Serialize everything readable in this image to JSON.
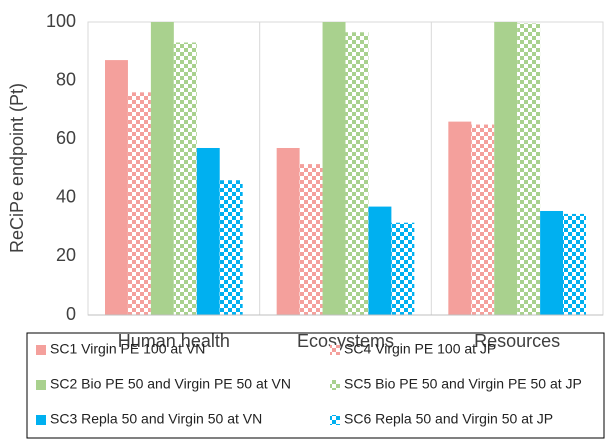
{
  "chart_data": {
    "type": "bar",
    "y_label": "ReCiPe endpoint (Pt)",
    "categories": [
      "Human health",
      "Ecosystems",
      "Resources"
    ],
    "series": [
      {
        "name": "SC1 Virgin PE 100 at VN",
        "color": "#f4a09c",
        "pattern": "solid",
        "values": [
          87,
          57,
          66
        ]
      },
      {
        "name": "SC4 Virgin PE 100 at JP",
        "color": "#f4a09c",
        "pattern": "checker",
        "values": [
          76,
          51.5,
          65
        ]
      },
      {
        "name": "SC2 Bio PE 50 and Virgin PE 50 at VN",
        "color": "#a9d18e",
        "pattern": "solid",
        "values": [
          100,
          100,
          100
        ]
      },
      {
        "name": "SC5 Bio PE 50 and Virgin PE 50 at JP",
        "color": "#a9d18e",
        "pattern": "checker",
        "values": [
          93,
          96.5,
          99.5
        ]
      },
      {
        "name": "SC3 Repla 50 and Virgin 50 at VN",
        "color": "#00b0f0",
        "pattern": "solid",
        "values": [
          57,
          37,
          35.5
        ]
      },
      {
        "name": "SC6 Repla 50 and Virgin 50 at JP",
        "color": "#00b0f0",
        "pattern": "checker",
        "values": [
          46,
          31.5,
          34.5
        ]
      }
    ],
    "ylim": [
      0,
      100
    ],
    "yticks": [
      0,
      20,
      40,
      60,
      80,
      100
    ],
    "grid": false
  }
}
